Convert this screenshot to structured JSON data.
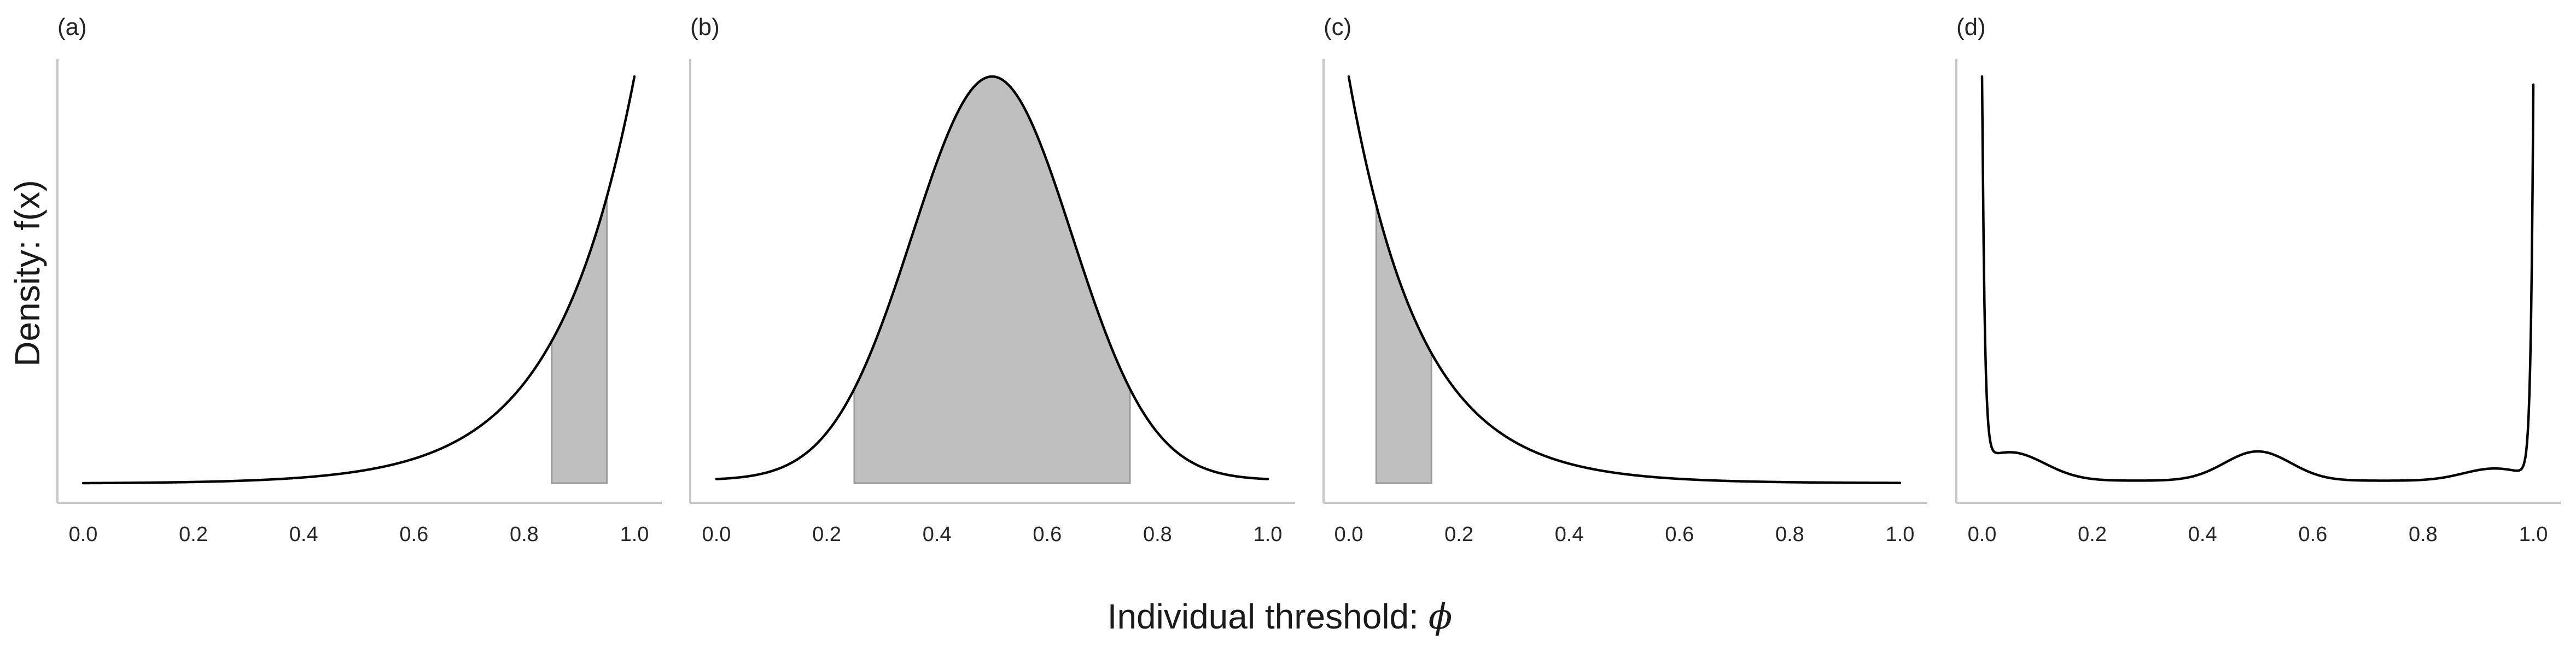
{
  "figure": {
    "ylabel": "Density: f(x)",
    "xlabel_prefix": "Individual threshold: ",
    "xlabel_symbol": "ϕ"
  },
  "chart_data": [
    {
      "type": "line",
      "panel_label": "(a)",
      "distribution": "exponential-rise",
      "x": [
        0.0,
        0.1,
        0.2,
        0.3,
        0.4,
        0.5,
        0.6,
        0.7,
        0.75,
        0.8,
        0.85,
        0.9,
        0.95,
        1.0
      ],
      "y_relative": [
        0.0,
        0.0,
        0.0,
        0.002,
        0.009,
        0.025,
        0.06,
        0.14,
        0.2,
        0.28,
        0.38,
        0.52,
        0.69,
        1.0
      ],
      "shaded_interval": [
        0.85,
        0.95
      ],
      "xticks": [
        "0.0",
        "0.2",
        "0.4",
        "0.6",
        "0.8",
        "1.0"
      ],
      "xlim": [
        0,
        1
      ]
    },
    {
      "type": "line",
      "panel_label": "(b)",
      "distribution": "bell",
      "x": [
        0.0,
        0.1,
        0.2,
        0.25,
        0.3,
        0.4,
        0.5,
        0.6,
        0.7,
        0.75,
        0.8,
        0.9,
        1.0
      ],
      "y_relative": [
        0.01,
        0.06,
        0.2,
        0.31,
        0.45,
        0.8,
        1.0,
        0.8,
        0.45,
        0.31,
        0.2,
        0.06,
        0.01
      ],
      "shaded_interval": [
        0.25,
        0.75
      ],
      "xticks": [
        "0.0",
        "0.2",
        "0.4",
        "0.6",
        "0.8",
        "1.0"
      ],
      "xlim": [
        0,
        1
      ]
    },
    {
      "type": "line",
      "panel_label": "(c)",
      "distribution": "exponential-decay",
      "x": [
        0.0,
        0.05,
        0.1,
        0.15,
        0.2,
        0.3,
        0.4,
        0.5,
        0.6,
        0.8,
        1.0
      ],
      "y_relative": [
        1.0,
        0.68,
        0.47,
        0.32,
        0.21,
        0.1,
        0.04,
        0.02,
        0.008,
        0.001,
        0.0
      ],
      "shaded_interval": [
        0.05,
        0.15
      ],
      "xticks": [
        "0.0",
        "0.2",
        "0.4",
        "0.6",
        "0.8",
        "1.0"
      ],
      "xlim": [
        0,
        1
      ]
    },
    {
      "type": "line",
      "panel_label": "(d)",
      "distribution": "u-shaped-with-central-bump",
      "x": [
        0.0,
        0.005,
        0.02,
        0.05,
        0.1,
        0.2,
        0.3,
        0.4,
        0.5,
        0.6,
        0.7,
        0.8,
        0.9,
        0.95,
        0.98,
        0.995,
        1.0
      ],
      "y_relative": [
        1.0,
        0.6,
        0.07,
        0.06,
        0.04,
        0.005,
        0.01,
        0.035,
        0.07,
        0.03,
        0.005,
        0.005,
        0.025,
        0.03,
        0.06,
        0.5,
        0.96
      ],
      "shaded_interval": null,
      "xticks": [
        "0.0",
        "0.2",
        "0.4",
        "0.6",
        "0.8",
        "1.0"
      ],
      "xlim": [
        0,
        1
      ]
    }
  ]
}
